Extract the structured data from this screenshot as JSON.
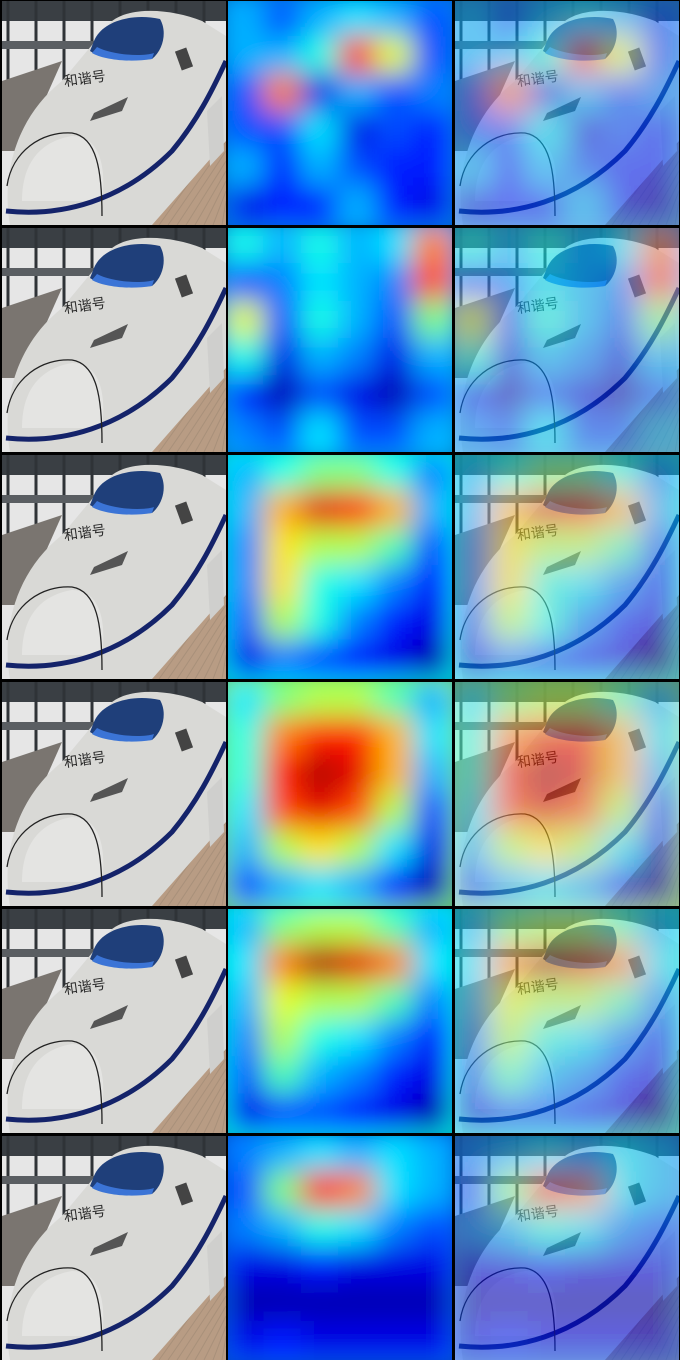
{
  "figure": {
    "rows": [
      {
        "row": 1,
        "heat": [
          [
            0.3,
            0.2,
            0.3,
            0.35,
            0.3,
            0.2
          ],
          [
            0.3,
            0.3,
            0.4,
            0.85,
            0.6,
            0.2
          ],
          [
            0.2,
            0.75,
            0.1,
            0.3,
            0.2,
            0.25
          ],
          [
            0.2,
            0.2,
            0.35,
            0.1,
            0.2,
            0.15
          ],
          [
            0.3,
            0.15,
            0.3,
            0.2,
            0.15,
            0.15
          ],
          [
            0.1,
            0.15,
            0.15,
            0.3,
            0.15,
            0.1
          ]
        ]
      },
      {
        "row": 2,
        "heat": [
          [
            0.4,
            0.3,
            0.4,
            0.3,
            0.35,
            0.75
          ],
          [
            0.2,
            0.25,
            0.35,
            0.3,
            0.25,
            0.8
          ],
          [
            0.6,
            0.2,
            0.4,
            0.3,
            0.2,
            0.5
          ],
          [
            0.4,
            0.1,
            0.3,
            0.25,
            0.1,
            0.3
          ],
          [
            0.15,
            0.05,
            0.2,
            0.1,
            0.05,
            0.2
          ],
          [
            0.25,
            0.2,
            0.35,
            0.2,
            0.2,
            0.3
          ]
        ]
      },
      {
        "row": 3,
        "heat": [
          [
            0.3,
            0.4,
            0.5,
            0.5,
            0.4,
            0.25
          ],
          [
            0.3,
            0.7,
            0.9,
            0.85,
            0.7,
            0.3
          ],
          [
            0.25,
            0.65,
            0.55,
            0.55,
            0.45,
            0.2
          ],
          [
            0.25,
            0.65,
            0.4,
            0.35,
            0.25,
            0.15
          ],
          [
            0.2,
            0.55,
            0.4,
            0.25,
            0.15,
            0.1
          ],
          [
            0.1,
            0.25,
            0.2,
            0.15,
            0.1,
            0.05
          ]
        ]
      },
      {
        "row": 4,
        "heat": [
          [
            0.35,
            0.5,
            0.55,
            0.55,
            0.45,
            0.3
          ],
          [
            0.4,
            0.75,
            0.85,
            0.85,
            0.7,
            0.35
          ],
          [
            0.4,
            0.85,
            0.95,
            0.9,
            0.7,
            0.3
          ],
          [
            0.35,
            0.8,
            0.9,
            0.8,
            0.55,
            0.2
          ],
          [
            0.3,
            0.55,
            0.65,
            0.55,
            0.35,
            0.1
          ],
          [
            0.2,
            0.3,
            0.35,
            0.3,
            0.15,
            0.05
          ]
        ]
      },
      {
        "row": 5,
        "heat": [
          [
            0.3,
            0.5,
            0.55,
            0.55,
            0.45,
            0.3
          ],
          [
            0.35,
            0.75,
            0.95,
            0.9,
            0.75,
            0.35
          ],
          [
            0.3,
            0.6,
            0.55,
            0.55,
            0.45,
            0.25
          ],
          [
            0.25,
            0.55,
            0.4,
            0.35,
            0.25,
            0.15
          ],
          [
            0.2,
            0.45,
            0.3,
            0.25,
            0.15,
            0.1
          ],
          [
            0.1,
            0.2,
            0.2,
            0.15,
            0.1,
            0.05
          ]
        ]
      },
      {
        "row": 6,
        "heat": [
          [
            0.25,
            0.3,
            0.35,
            0.3,
            0.35,
            0.3
          ],
          [
            0.2,
            0.5,
            0.85,
            0.75,
            0.35,
            0.3
          ],
          [
            0.25,
            0.3,
            0.4,
            0.35,
            0.25,
            0.2
          ],
          [
            0.1,
            0.1,
            0.15,
            0.1,
            0.1,
            0.1
          ],
          [
            0.05,
            0.05,
            0.05,
            0.05,
            0.05,
            0.05
          ],
          [
            0.1,
            0.15,
            0.1,
            0.1,
            0.1,
            0.1
          ]
        ]
      }
    ],
    "columns": [
      "original-photo",
      "attention-heatmap",
      "heatmap-overlay"
    ],
    "colormap": "jet",
    "train_colors": {
      "body": "#d9d9d6",
      "stripe": "#14236a",
      "window": "#1f3f7a",
      "window_blue": "#3b74d6",
      "sky": "#e6e6e6",
      "platform": "#b89c84",
      "roof": "#3a3f44"
    },
    "train_lettering": "和谐号"
  }
}
